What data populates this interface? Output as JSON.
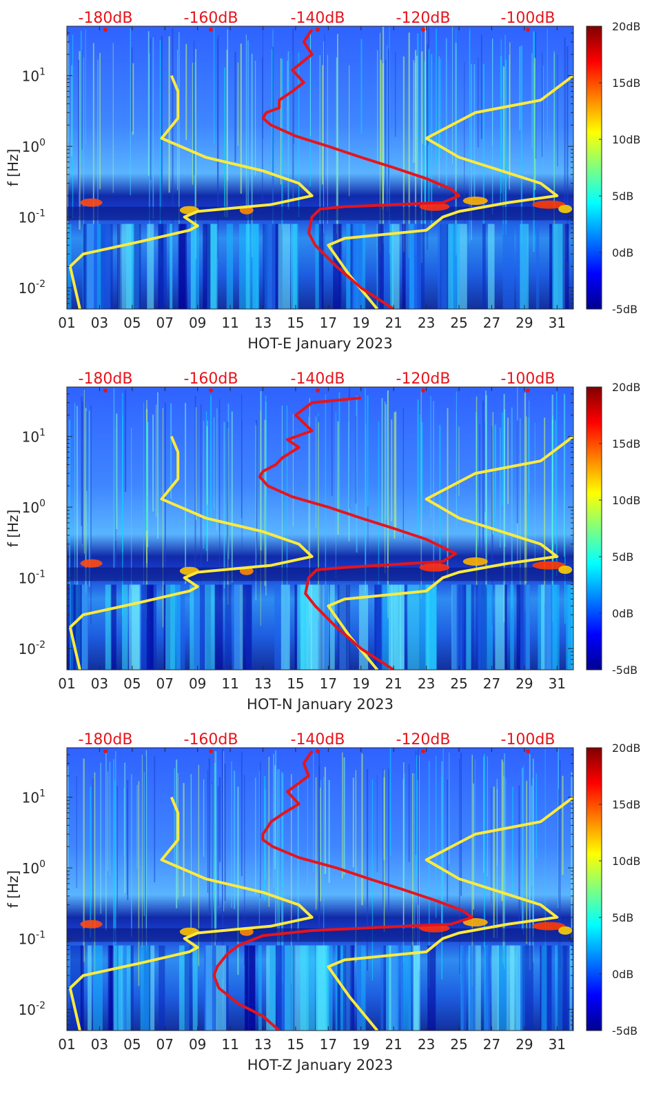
{
  "chart_data": [
    {
      "type": "heatmap",
      "title": "",
      "xlabel": "HOT-E January 2023",
      "ylabel": "f [Hz]",
      "x_ticks": [
        "01",
        "03",
        "05",
        "07",
        "09",
        "11",
        "13",
        "15",
        "17",
        "19",
        "21",
        "23",
        "25",
        "27",
        "29",
        "31"
      ],
      "y_ticks": [
        {
          "value": 0.01,
          "base": "10",
          "exp": "-2"
        },
        {
          "value": 0.1,
          "base": "10",
          "exp": "-1"
        },
        {
          "value": 1,
          "base": "10",
          "exp": "0"
        },
        {
          "value": 10,
          "base": "10",
          "exp": "1"
        }
      ],
      "xlim": [
        1,
        32
      ],
      "ylim": [
        0.005,
        50
      ],
      "colorbar": {
        "ticks": [
          "20dB",
          "15dB",
          "10dB",
          "5dB",
          "0dB",
          "-5dB"
        ],
        "range": [
          -5,
          20
        ]
      },
      "top_axis_labels": [
        "-180dB",
        "-160dB",
        "-140dB",
        "-120dB",
        "-100dB"
      ],
      "series": [
        {
          "name": "yellow-model-left",
          "color": "#ffeb3b",
          "x": [
            7.4,
            7.8,
            7.8,
            6.8,
            9.5,
            13,
            15.2,
            16,
            13.5,
            9,
            8.2,
            9,
            8.5,
            5.5,
            2,
            1.2,
            1.5,
            1.8
          ],
          "y": [
            10,
            6,
            2.5,
            1.3,
            0.7,
            0.45,
            0.3,
            0.2,
            0.15,
            0.12,
            0.1,
            0.075,
            0.065,
            0.045,
            0.03,
            0.02,
            0.01,
            0.005
          ]
        },
        {
          "name": "yellow-model-right",
          "color": "#ffeb3b",
          "x": [
            32,
            30,
            26,
            23,
            25,
            30,
            31,
            28,
            25,
            24,
            23,
            18,
            17,
            18.3,
            20
          ],
          "y": [
            10,
            4.5,
            3,
            1.3,
            0.7,
            0.3,
            0.2,
            0.16,
            0.12,
            0.1,
            0.065,
            0.05,
            0.04,
            0.015,
            0.005
          ]
        },
        {
          "name": "red-psd",
          "color": "#e6141b",
          "x": [
            16,
            15.5,
            16,
            14.8,
            15.5,
            14.8,
            14,
            14,
            13.2,
            13,
            13.5,
            15,
            17,
            19,
            21,
            23,
            24.5,
            25,
            24,
            18,
            16.5,
            16,
            15.8,
            16.2,
            17.5,
            19,
            21
          ],
          "y": [
            45,
            30,
            20,
            12,
            8,
            6,
            4.5,
            3.5,
            3,
            2.5,
            2,
            1.4,
            1,
            0.7,
            0.5,
            0.35,
            0.25,
            0.2,
            0.16,
            0.14,
            0.13,
            0.1,
            0.06,
            0.04,
            0.02,
            0.01,
            0.005
          ]
        }
      ]
    },
    {
      "type": "heatmap",
      "title": "",
      "xlabel": "HOT-N January 2023",
      "ylabel": "f [Hz]",
      "x_ticks": [
        "01",
        "03",
        "05",
        "07",
        "09",
        "11",
        "13",
        "15",
        "17",
        "19",
        "21",
        "23",
        "25",
        "27",
        "29",
        "31"
      ],
      "y_ticks": [
        {
          "value": 0.01,
          "base": "10",
          "exp": "-2"
        },
        {
          "value": 0.1,
          "base": "10",
          "exp": "-1"
        },
        {
          "value": 1,
          "base": "10",
          "exp": "0"
        },
        {
          "value": 10,
          "base": "10",
          "exp": "1"
        }
      ],
      "xlim": [
        1,
        32
      ],
      "ylim": [
        0.005,
        50
      ],
      "colorbar": {
        "ticks": [
          "20dB",
          "15dB",
          "10dB",
          "5dB",
          "0dB",
          "-5dB"
        ],
        "range": [
          -5,
          20
        ]
      },
      "top_axis_labels": [
        "-180dB",
        "-160dB",
        "-140dB",
        "-120dB",
        "-100dB"
      ],
      "series": [
        {
          "name": "yellow-model-left",
          "color": "#ffeb3b",
          "x": [
            7.4,
            7.8,
            7.8,
            6.8,
            9.5,
            13,
            15.2,
            16,
            13.5,
            9,
            8.2,
            9,
            8.5,
            5.5,
            2,
            1.2,
            1.5,
            1.8
          ],
          "y": [
            10,
            6,
            2.5,
            1.3,
            0.7,
            0.45,
            0.3,
            0.2,
            0.15,
            0.12,
            0.1,
            0.075,
            0.065,
            0.045,
            0.03,
            0.02,
            0.01,
            0.005
          ]
        },
        {
          "name": "yellow-model-right",
          "color": "#ffeb3b",
          "x": [
            32,
            30,
            26,
            23,
            25,
            30,
            31,
            28,
            25,
            24,
            23,
            18,
            17,
            18.3,
            20
          ],
          "y": [
            10,
            4.5,
            3,
            1.3,
            0.7,
            0.3,
            0.2,
            0.16,
            0.12,
            0.1,
            0.065,
            0.05,
            0.04,
            0.015,
            0.005
          ]
        },
        {
          "name": "red-psd",
          "color": "#e6141b",
          "x": [
            19,
            16,
            15,
            16,
            14.5,
            15.2,
            14.2,
            13.8,
            13,
            12.8,
            13.3,
            14.8,
            17,
            19,
            21,
            23,
            24.3,
            24.8,
            24,
            18,
            16.3,
            15.8,
            15.6,
            16.2,
            17.5,
            19,
            21
          ],
          "y": [
            35,
            30,
            20,
            12,
            9,
            7,
            5,
            4,
            3.2,
            2.7,
            2,
            1.4,
            1,
            0.7,
            0.5,
            0.35,
            0.25,
            0.22,
            0.17,
            0.14,
            0.13,
            0.1,
            0.06,
            0.04,
            0.02,
            0.01,
            0.005
          ]
        }
      ]
    },
    {
      "type": "heatmap",
      "title": "",
      "xlabel": "HOT-Z January 2023",
      "ylabel": "f [Hz]",
      "x_ticks": [
        "01",
        "03",
        "05",
        "07",
        "09",
        "11",
        "13",
        "15",
        "17",
        "19",
        "21",
        "23",
        "25",
        "27",
        "29",
        "31"
      ],
      "y_ticks": [
        {
          "value": 0.01,
          "base": "10",
          "exp": "-2"
        },
        {
          "value": 0.1,
          "base": "10",
          "exp": "-1"
        },
        {
          "value": 1,
          "base": "10",
          "exp": "0"
        },
        {
          "value": 10,
          "base": "10",
          "exp": "1"
        }
      ],
      "xlim": [
        1,
        32
      ],
      "ylim": [
        0.005,
        50
      ],
      "colorbar": {
        "ticks": [
          "20dB",
          "15dB",
          "10dB",
          "5dB",
          "0dB",
          "-5dB"
        ],
        "range": [
          -5,
          20
        ]
      },
      "top_axis_labels": [
        "-180dB",
        "-160dB",
        "-140dB",
        "-120dB",
        "-100dB"
      ],
      "series": [
        {
          "name": "yellow-model-left",
          "color": "#ffeb3b",
          "x": [
            7.4,
            7.8,
            7.8,
            6.8,
            9.5,
            13,
            15.2,
            16,
            13.5,
            9,
            8.2,
            9,
            8.5,
            5.5,
            2,
            1.2,
            1.5,
            1.8
          ],
          "y": [
            10,
            6,
            2.5,
            1.3,
            0.7,
            0.45,
            0.3,
            0.2,
            0.15,
            0.12,
            0.1,
            0.075,
            0.065,
            0.045,
            0.03,
            0.02,
            0.01,
            0.005
          ]
        },
        {
          "name": "yellow-model-right",
          "color": "#ffeb3b",
          "x": [
            32,
            30,
            26,
            23,
            25,
            30,
            31,
            28,
            25,
            24,
            23,
            18,
            17,
            18.3,
            20
          ],
          "y": [
            10,
            4.5,
            3,
            1.3,
            0.7,
            0.3,
            0.2,
            0.16,
            0.12,
            0.1,
            0.065,
            0.05,
            0.04,
            0.015,
            0.005
          ]
        },
        {
          "name": "red-psd",
          "color": "#e6141b",
          "x": [
            16,
            15.5,
            15.8,
            14.5,
            15.2,
            14.3,
            13.5,
            13.2,
            13,
            13,
            13.6,
            15.2,
            17.5,
            19.5,
            21.5,
            23.5,
            25.2,
            25.8,
            24.5,
            16,
            13,
            11.5,
            10.8,
            10.2,
            10,
            10.3,
            11.5,
            13,
            14
          ],
          "y": [
            45,
            30,
            20,
            12,
            8,
            6,
            4.5,
            3.5,
            3,
            2.5,
            2,
            1.4,
            1,
            0.7,
            0.5,
            0.35,
            0.25,
            0.2,
            0.16,
            0.13,
            0.11,
            0.08,
            0.06,
            0.04,
            0.03,
            0.02,
            0.012,
            0.008,
            0.005
          ]
        }
      ]
    }
  ]
}
